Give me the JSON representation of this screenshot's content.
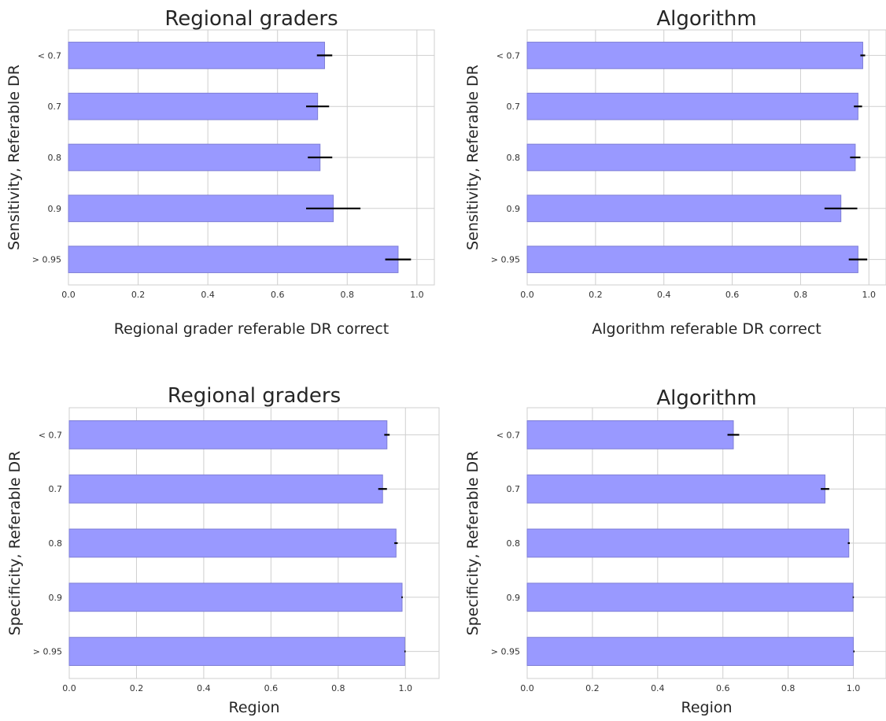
{
  "chart_data": [
    {
      "type": "bar",
      "orientation": "horizontal",
      "title": "Regional graders",
      "xlabel": "Regional grader referable DR correct",
      "ylabel": "Sensitivity, Referable DR",
      "categories": [
        "< 0.7",
        "0.7",
        "0.8",
        "0.9",
        "> 0.95"
      ],
      "values": [
        0.735,
        0.715,
        0.722,
        0.76,
        0.946
      ],
      "errors": [
        0.022,
        0.033,
        0.035,
        0.078,
        0.037
      ],
      "xlim": [
        0,
        1.05
      ],
      "xticks": [
        "0.0",
        "0.2",
        "0.4",
        "0.6",
        "0.8",
        "1.0"
      ],
      "grid": true,
      "color": "#9999ff"
    },
    {
      "type": "bar",
      "orientation": "horizontal",
      "title": "Algorithm",
      "xlabel": "Algorithm referable DR correct",
      "ylabel": "Sensitivity, Referable DR",
      "categories": [
        "< 0.7",
        "0.7",
        "0.8",
        "0.9",
        "> 0.95"
      ],
      "values": [
        0.982,
        0.968,
        0.96,
        0.918,
        0.968
      ],
      "errors": [
        0.007,
        0.012,
        0.015,
        0.048,
        0.027
      ],
      "xlim": [
        0,
        1.05
      ],
      "xticks": [
        "0.0",
        "0.2",
        "0.4",
        "0.6",
        "0.8",
        "1.0"
      ],
      "grid": true,
      "color": "#9999ff"
    },
    {
      "type": "bar",
      "orientation": "horizontal",
      "title": "Regional graders",
      "xlabel": "Region",
      "ylabel": "Specificity, Referable DR",
      "categories": [
        "< 0.7",
        "0.7",
        "0.8",
        "0.9",
        "> 0.95"
      ],
      "values": [
        0.945,
        0.932,
        0.972,
        0.99,
        0.998
      ],
      "errors": [
        0.008,
        0.013,
        0.005,
        0.002,
        0.001
      ],
      "xlim": [
        0,
        1.1
      ],
      "xticks": [
        "0.0",
        "0.2",
        "0.4",
        "0.6",
        "0.8",
        "1.0"
      ],
      "grid": true,
      "color": "#9999ff"
    },
    {
      "type": "bar",
      "orientation": "horizontal",
      "title": "Algorithm",
      "xlabel": "Region",
      "ylabel": "Specificity, Referable DR",
      "categories": [
        "< 0.7",
        "0.7",
        "0.8",
        "0.9",
        "> 0.95"
      ],
      "values": [
        0.632,
        0.913,
        0.986,
        0.999,
        1.0
      ],
      "errors": [
        0.018,
        0.013,
        0.003,
        0.001,
        0.0
      ],
      "xlim": [
        0,
        1.1
      ],
      "xticks": [
        "0.0",
        "0.2",
        "0.4",
        "0.6",
        "0.8",
        "1.0"
      ],
      "grid": true,
      "color": "#9999ff"
    }
  ]
}
